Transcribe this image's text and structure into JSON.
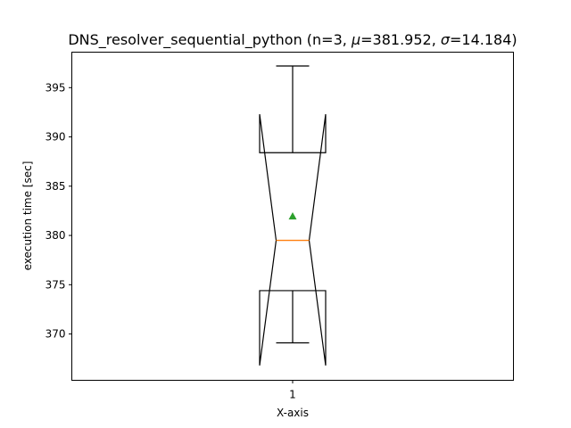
{
  "chart_data": {
    "type": "box",
    "title_parts": {
      "name": "DNS_resolver_sequential_python",
      "n": "n=3",
      "mu_symbol": "μ",
      "mu_value": "=381.952",
      "sigma_symbol": "σ",
      "sigma_value": "=14.184"
    },
    "xlabel": "X-axis",
    "ylabel": "execution time [sec]",
    "categories": [
      "1"
    ],
    "ylim": [
      365.3,
      398.6
    ],
    "yticks": [
      370,
      375,
      380,
      385,
      390,
      395
    ],
    "notched": true,
    "boxes": [
      {
        "category": "1",
        "whisker_low": 369.1,
        "q1": 374.4,
        "median": 379.5,
        "q3": 388.4,
        "whisker_high": 397.2,
        "notch_low": 366.8,
        "notch_high": 392.3,
        "mean": 381.952
      }
    ],
    "colors": {
      "box": "#000000",
      "median": "#ff7f0e",
      "mean": "#2ca02c"
    },
    "grid": false,
    "legend": "none"
  }
}
